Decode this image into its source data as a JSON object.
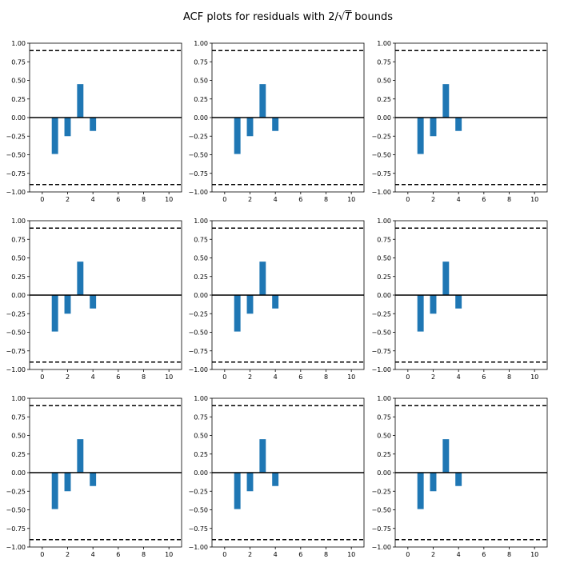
{
  "figure": {
    "title_prefix": "ACF plots for residuals with 2/√",
    "title_var": "T",
    "title_suffix": " bounds"
  },
  "chart_data": [
    {
      "type": "bar",
      "x": [
        0,
        1,
        2,
        3,
        4,
        5,
        6,
        7,
        8,
        9,
        10
      ],
      "values": [
        0,
        -0.49,
        -0.25,
        0.45,
        -0.18,
        0,
        0,
        0,
        0,
        0,
        0
      ],
      "bounds": [
        0.9,
        -0.9
      ],
      "xlim": [
        -1,
        11
      ],
      "ylim": [
        -1,
        1
      ],
      "xticks": [
        "0",
        "2",
        "4",
        "6",
        "8",
        "10"
      ],
      "yticks": [
        "1.00",
        "0.75",
        "0.50",
        "0.25",
        "0.00",
        "−0.25",
        "−0.50",
        "−0.75",
        "−1.00"
      ],
      "bar_color": "#1f77b4"
    },
    {
      "type": "bar",
      "x": [
        0,
        1,
        2,
        3,
        4,
        5,
        6,
        7,
        8,
        9,
        10
      ],
      "values": [
        0,
        -0.49,
        -0.25,
        0.45,
        -0.18,
        0,
        0,
        0,
        0,
        0,
        0
      ],
      "bounds": [
        0.9,
        -0.9
      ],
      "xlim": [
        -1,
        11
      ],
      "ylim": [
        -1,
        1
      ],
      "xticks": [
        "0",
        "2",
        "4",
        "6",
        "8",
        "10"
      ],
      "yticks": [
        "1.00",
        "0.75",
        "0.50",
        "0.25",
        "0.00",
        "−0.25",
        "−0.50",
        "−0.75",
        "−1.00"
      ],
      "bar_color": "#1f77b4"
    },
    {
      "type": "bar",
      "x": [
        0,
        1,
        2,
        3,
        4,
        5,
        6,
        7,
        8,
        9,
        10
      ],
      "values": [
        0,
        -0.49,
        -0.25,
        0.45,
        -0.18,
        0,
        0,
        0,
        0,
        0,
        0
      ],
      "bounds": [
        0.9,
        -0.9
      ],
      "xlim": [
        -1,
        11
      ],
      "ylim": [
        -1,
        1
      ],
      "xticks": [
        "0",
        "2",
        "4",
        "6",
        "8",
        "10"
      ],
      "yticks": [
        "1.00",
        "0.75",
        "0.50",
        "0.25",
        "0.00",
        "−0.25",
        "−0.50",
        "−0.75",
        "−1.00"
      ],
      "bar_color": "#1f77b4"
    },
    {
      "type": "bar",
      "x": [
        0,
        1,
        2,
        3,
        4,
        5,
        6,
        7,
        8,
        9,
        10
      ],
      "values": [
        0,
        -0.49,
        -0.25,
        0.45,
        -0.18,
        0,
        0,
        0,
        0,
        0,
        0
      ],
      "bounds": [
        0.9,
        -0.9
      ],
      "xlim": [
        -1,
        11
      ],
      "ylim": [
        -1,
        1
      ],
      "xticks": [
        "0",
        "2",
        "4",
        "6",
        "8",
        "10"
      ],
      "yticks": [
        "1.00",
        "0.75",
        "0.50",
        "0.25",
        "0.00",
        "−0.25",
        "−0.50",
        "−0.75",
        "−1.00"
      ],
      "bar_color": "#1f77b4"
    },
    {
      "type": "bar",
      "x": [
        0,
        1,
        2,
        3,
        4,
        5,
        6,
        7,
        8,
        9,
        10
      ],
      "values": [
        0,
        -0.49,
        -0.25,
        0.45,
        -0.18,
        0,
        0,
        0,
        0,
        0,
        0
      ],
      "bounds": [
        0.9,
        -0.9
      ],
      "xlim": [
        -1,
        11
      ],
      "ylim": [
        -1,
        1
      ],
      "xticks": [
        "0",
        "2",
        "4",
        "6",
        "8",
        "10"
      ],
      "yticks": [
        "1.00",
        "0.75",
        "0.50",
        "0.25",
        "0.00",
        "−0.25",
        "−0.50",
        "−0.75",
        "−1.00"
      ],
      "bar_color": "#1f77b4"
    },
    {
      "type": "bar",
      "x": [
        0,
        1,
        2,
        3,
        4,
        5,
        6,
        7,
        8,
        9,
        10
      ],
      "values": [
        0,
        -0.49,
        -0.25,
        0.45,
        -0.18,
        0,
        0,
        0,
        0,
        0,
        0
      ],
      "bounds": [
        0.9,
        -0.9
      ],
      "xlim": [
        -1,
        11
      ],
      "ylim": [
        -1,
        1
      ],
      "xticks": [
        "0",
        "2",
        "4",
        "6",
        "8",
        "10"
      ],
      "yticks": [
        "1.00",
        "0.75",
        "0.50",
        "0.25",
        "0.00",
        "−0.25",
        "−0.50",
        "−0.75",
        "−1.00"
      ],
      "bar_color": "#1f77b4"
    },
    {
      "type": "bar",
      "x": [
        0,
        1,
        2,
        3,
        4,
        5,
        6,
        7,
        8,
        9,
        10
      ],
      "values": [
        0,
        -0.49,
        -0.25,
        0.45,
        -0.18,
        0,
        0,
        0,
        0,
        0,
        0
      ],
      "bounds": [
        0.9,
        -0.9
      ],
      "xlim": [
        -1,
        11
      ],
      "ylim": [
        -1,
        1
      ],
      "xticks": [
        "0",
        "2",
        "4",
        "6",
        "8",
        "10"
      ],
      "yticks": [
        "1.00",
        "0.75",
        "0.50",
        "0.25",
        "0.00",
        "−0.25",
        "−0.50",
        "−0.75",
        "−1.00"
      ],
      "bar_color": "#1f77b4"
    },
    {
      "type": "bar",
      "x": [
        0,
        1,
        2,
        3,
        4,
        5,
        6,
        7,
        8,
        9,
        10
      ],
      "values": [
        0,
        -0.49,
        -0.25,
        0.45,
        -0.18,
        0,
        0,
        0,
        0,
        0,
        0
      ],
      "bounds": [
        0.9,
        -0.9
      ],
      "xlim": [
        -1,
        11
      ],
      "ylim": [
        -1,
        1
      ],
      "xticks": [
        "0",
        "2",
        "4",
        "6",
        "8",
        "10"
      ],
      "yticks": [
        "1.00",
        "0.75",
        "0.50",
        "0.25",
        "0.00",
        "−0.25",
        "−0.50",
        "−0.75",
        "−1.00"
      ],
      "bar_color": "#1f77b4"
    },
    {
      "type": "bar",
      "x": [
        0,
        1,
        2,
        3,
        4,
        5,
        6,
        7,
        8,
        9,
        10
      ],
      "values": [
        0,
        -0.49,
        -0.25,
        0.45,
        -0.18,
        0,
        0,
        0,
        0,
        0,
        0
      ],
      "bounds": [
        0.9,
        -0.9
      ],
      "xlim": [
        -1,
        11
      ],
      "ylim": [
        -1,
        1
      ],
      "xticks": [
        "0",
        "2",
        "4",
        "6",
        "8",
        "10"
      ],
      "yticks": [
        "1.00",
        "0.75",
        "0.50",
        "0.25",
        "0.00",
        "−0.25",
        "−0.50",
        "−0.75",
        "−1.00"
      ],
      "bar_color": "#1f77b4"
    }
  ]
}
